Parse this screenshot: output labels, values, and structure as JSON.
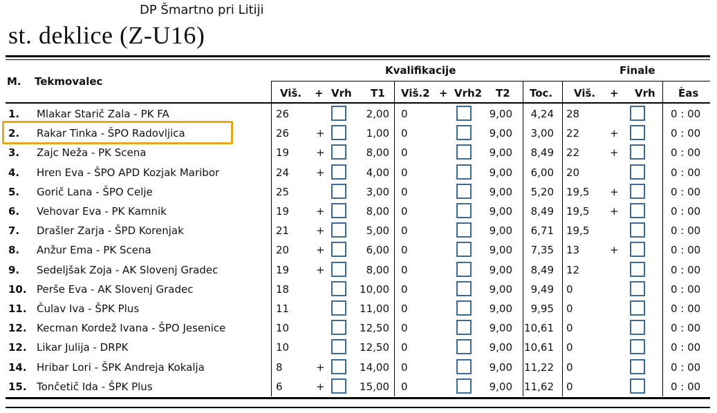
{
  "header": {
    "organizer": "DP Šmartno pri Litiji",
    "category": "st. deklice (Z-U16)"
  },
  "table": {
    "group_kval": "Kvalifikacije",
    "group_final": "Finale",
    "col_rank": "M.",
    "col_name": "Tekmovalec",
    "col_vis": "Viš.",
    "col_plus": "+",
    "col_vrh": "Vrh",
    "col_t1": "T1",
    "col_vis2": "Viš.2",
    "col_plus2": "+",
    "col_vrh2": "Vrh2",
    "col_t2": "T2",
    "col_toc": "Toc.",
    "col_fvis": "Viš.",
    "col_fplus": "+",
    "col_fvrh": "Vrh",
    "col_cas": "Èas",
    "rows": [
      {
        "rank": "1.",
        "name": "Mlakar Starič Zala - PK FA",
        "vis": "26",
        "plus": "",
        "t1": "2,00",
        "vis2": "0",
        "t2": "9,00",
        "toc": "4,24",
        "fvis": "28",
        "fplus": "",
        "cas": "0 : 00"
      },
      {
        "rank": "2.",
        "name": "Rakar Tinka - ŠPO Radovljica",
        "vis": "26",
        "plus": "+",
        "t1": "1,00",
        "vis2": "0",
        "t2": "9,00",
        "toc": "3,00",
        "fvis": "22",
        "fplus": "+",
        "cas": "0 : 00"
      },
      {
        "rank": "3.",
        "name": "Zajc Neža - PK Scena",
        "vis": "19",
        "plus": "+",
        "t1": "8,00",
        "vis2": "0",
        "t2": "9,00",
        "toc": "8,49",
        "fvis": "22",
        "fplus": "+",
        "cas": "0 : 00"
      },
      {
        "rank": "4.",
        "name": "Hren Eva - ŠPO APD Kozjak Maribor",
        "vis": "24",
        "plus": "+",
        "t1": "4,00",
        "vis2": "0",
        "t2": "9,00",
        "toc": "6,00",
        "fvis": "20",
        "fplus": "",
        "cas": "0 : 00"
      },
      {
        "rank": "5.",
        "name": "Gorič Lana - ŠPO Celje",
        "vis": "25",
        "plus": "",
        "t1": "3,00",
        "vis2": "0",
        "t2": "9,00",
        "toc": "5,20",
        "fvis": "19,5",
        "fplus": "+",
        "cas": "0 : 00"
      },
      {
        "rank": "6.",
        "name": "Vehovar Eva - PK Kamnik",
        "vis": "19",
        "plus": "+",
        "t1": "8,00",
        "vis2": "0",
        "t2": "9,00",
        "toc": "8,49",
        "fvis": "19,5",
        "fplus": "+",
        "cas": "0 : 00"
      },
      {
        "rank": "7.",
        "name": "Drašler Zarja - ŠPD Korenjak",
        "vis": "21",
        "plus": "+",
        "t1": "5,00",
        "vis2": "0",
        "t2": "9,00",
        "toc": "6,71",
        "fvis": "19,5",
        "fplus": "",
        "cas": "0 : 00"
      },
      {
        "rank": "8.",
        "name": "Anžur Ema - PK Scena",
        "vis": "20",
        "plus": "+",
        "t1": "6,00",
        "vis2": "0",
        "t2": "9,00",
        "toc": "7,35",
        "fvis": "13",
        "fplus": "+",
        "cas": "0 : 00"
      },
      {
        "rank": "9.",
        "name": "Sedeljšak Zoja  - AK Slovenj Gradec",
        "vis": "19",
        "plus": "+",
        "t1": "8,00",
        "vis2": "0",
        "t2": "9,00",
        "toc": "8,49",
        "fvis": "12",
        "fplus": "",
        "cas": "0 : 00"
      },
      {
        "rank": "10.",
        "name": "Perše Eva - AK Slovenj Gradec",
        "vis": "18",
        "plus": "",
        "t1": "10,00",
        "vis2": "0",
        "t2": "9,00",
        "toc": "9,49",
        "fvis": "0",
        "fplus": "",
        "cas": "0 : 00"
      },
      {
        "rank": "11.",
        "name": "Čulav Iva - ŠPK Plus",
        "vis": "11",
        "plus": "",
        "t1": "11,00",
        "vis2": "0",
        "t2": "9,00",
        "toc": "9,95",
        "fvis": "0",
        "fplus": "",
        "cas": "0 : 00"
      },
      {
        "rank": "12.",
        "name": "Kecman Kordež Ivana - ŠPO Jesenice",
        "vis": "10",
        "plus": "",
        "t1": "12,50",
        "vis2": "0",
        "t2": "9,00",
        "toc": "10,61",
        "fvis": "0",
        "fplus": "",
        "cas": "0 : 00"
      },
      {
        "rank": "12.",
        "name": "Likar Julija - DRPK",
        "vis": "10",
        "plus": "",
        "t1": "12,50",
        "vis2": "0",
        "t2": "9,00",
        "toc": "10,61",
        "fvis": "0",
        "fplus": "",
        "cas": "0 : 00"
      },
      {
        "rank": "14.",
        "name": "Hribar Lori - ŠPK Andreja Kokalja",
        "vis": "8",
        "plus": "+",
        "t1": "14,00",
        "vis2": "0",
        "t2": "9,00",
        "toc": "11,22",
        "fvis": "0",
        "fplus": "",
        "cas": "0 : 00"
      },
      {
        "rank": "15.",
        "name": "Tončetič Ida - ŠPK Plus",
        "vis": "6",
        "plus": "+",
        "t1": "15,00",
        "vis2": "0",
        "t2": "9,00",
        "toc": "11,62",
        "fvis": "0",
        "fplus": "",
        "cas": "0 : 00"
      }
    ]
  },
  "accent": {
    "box_border": "#3a6a95",
    "highlight": "#e6a817"
  }
}
